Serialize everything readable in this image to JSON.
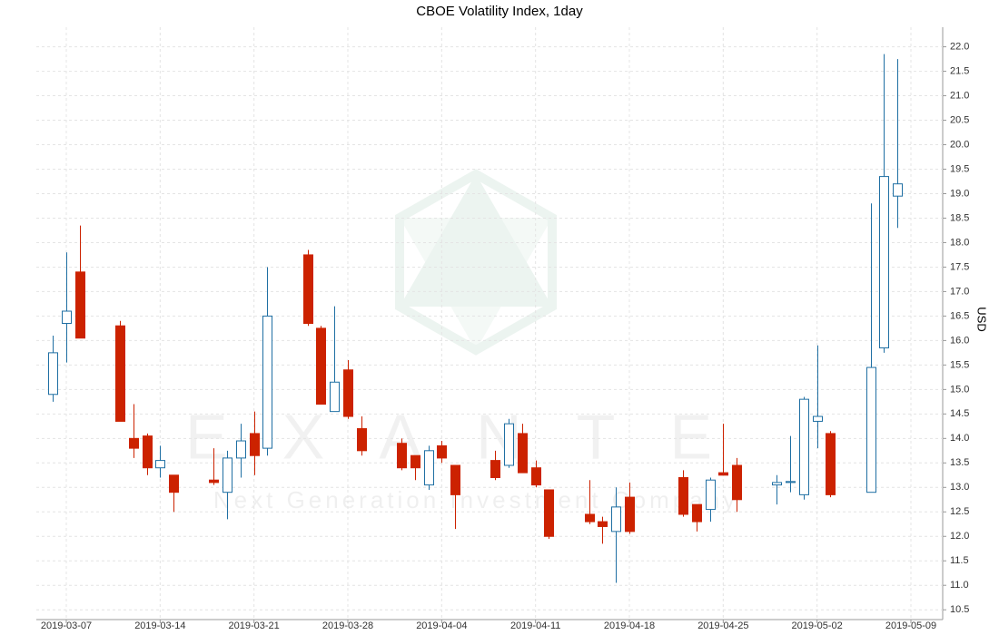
{
  "chart_data": {
    "type": "candlestick",
    "title": "CBOE Volatility Index, 1day",
    "y_label": "USD",
    "watermark": "EXANTE",
    "watermark_subtitle": "Next Generation Investment Company",
    "up_color": "#1f6fa3",
    "down_color": "#cc2200",
    "grid": true,
    "ylim": [
      10.3,
      22.4
    ],
    "yticks": [
      10.5,
      {
        "value": 11,
        "label": "11.0"
      },
      11.5,
      {
        "value": 12,
        "label": "12.0"
      },
      12.5,
      {
        "value": 13,
        "label": "13.0"
      },
      13.5,
      {
        "value": 14,
        "label": "14.0"
      },
      14.5,
      {
        "value": 15,
        "label": "15.0"
      },
      15.5,
      {
        "value": 16,
        "label": "16.0"
      },
      16.5,
      {
        "value": 17,
        "label": "17.0"
      },
      17.5,
      {
        "value": 18,
        "label": "18.0"
      },
      18.5,
      {
        "value": 19,
        "label": "19.0"
      },
      19.5,
      {
        "value": 20,
        "label": "20.0"
      },
      20.5,
      {
        "value": 21,
        "label": "21.0"
      },
      21.5,
      {
        "value": 22,
        "label": "22.0"
      }
    ],
    "xticks": [
      "2019-03-07",
      "2019-03-14",
      "2019-03-21",
      "2019-03-28",
      "2019-04-04",
      "2019-04-11",
      "2019-04-18",
      "2019-04-25",
      "2019-05-02",
      "2019-05-09"
    ],
    "x": [
      "2019-03-06",
      "2019-03-07",
      "2019-03-08",
      "2019-03-11",
      "2019-03-12",
      "2019-03-13",
      "2019-03-14",
      "2019-03-15",
      "2019-03-18",
      "2019-03-19",
      "2019-03-20",
      "2019-03-21",
      "2019-03-22",
      "2019-03-25",
      "2019-03-26",
      "2019-03-27",
      "2019-03-28",
      "2019-03-29",
      "2019-04-01",
      "2019-04-02",
      "2019-04-03",
      "2019-04-04",
      "2019-04-05",
      "2019-04-08",
      "2019-04-09",
      "2019-04-10",
      "2019-04-11",
      "2019-04-12",
      "2019-04-15",
      "2019-04-16",
      "2019-04-17",
      "2019-04-18",
      "2019-04-22",
      "2019-04-23",
      "2019-04-24",
      "2019-04-25",
      "2019-04-26",
      "2019-04-29",
      "2019-04-30",
      "2019-05-01",
      "2019-05-02",
      "2019-05-03",
      "2019-05-06",
      "2019-05-07",
      "2019-05-08"
    ],
    "open": [
      14.9,
      16.35,
      17.4,
      16.3,
      14.0,
      14.05,
      13.4,
      13.25,
      13.15,
      12.9,
      13.6,
      14.1,
      13.8,
      17.75,
      16.25,
      14.55,
      15.4,
      14.2,
      13.9,
      13.65,
      13.05,
      13.85,
      13.45,
      13.55,
      13.45,
      14.1,
      13.4,
      12.95,
      12.45,
      12.3,
      12.1,
      12.8,
      13.2,
      12.65,
      12.55,
      13.3,
      13.45,
      13.05,
      13.1,
      12.85,
      14.35,
      14.1,
      12.9,
      15.85,
      18.95
    ],
    "high": [
      16.1,
      17.8,
      18.35,
      16.4,
      14.7,
      14.1,
      13.85,
      13.25,
      13.8,
      13.75,
      14.3,
      14.55,
      17.5,
      17.85,
      16.3,
      16.7,
      15.6,
      14.45,
      14.0,
      13.65,
      13.85,
      13.95,
      13.45,
      13.75,
      14.4,
      14.3,
      13.55,
      12.95,
      13.15,
      12.4,
      13.0,
      13.1,
      13.35,
      12.65,
      13.2,
      14.3,
      13.6,
      13.25,
      14.05,
      14.85,
      15.9,
      14.15,
      18.8,
      21.85,
      21.75
    ],
    "low": [
      14.75,
      15.55,
      16.05,
      14.35,
      13.6,
      13.25,
      13.2,
      12.5,
      13.05,
      12.35,
      13.2,
      13.25,
      13.65,
      16.3,
      14.7,
      14.55,
      14.4,
      13.65,
      13.35,
      13.15,
      12.95,
      13.5,
      12.15,
      13.15,
      13.4,
      13.3,
      13.0,
      11.95,
      12.25,
      11.85,
      11.05,
      12.05,
      12.4,
      12.1,
      12.3,
      13.25,
      12.5,
      12.65,
      12.9,
      12.75,
      13.8,
      12.8,
      12.9,
      15.75,
      18.3
    ],
    "close": [
      15.75,
      16.6,
      16.05,
      14.35,
      13.8,
      13.4,
      13.55,
      12.9,
      13.1,
      13.6,
      13.95,
      13.65,
      16.5,
      16.35,
      14.7,
      15.15,
      14.45,
      13.75,
      13.4,
      13.4,
      13.75,
      13.6,
      12.85,
      13.2,
      14.3,
      13.3,
      13.05,
      12.0,
      12.3,
      12.2,
      12.6,
      12.1,
      12.45,
      12.3,
      13.15,
      13.25,
      12.75,
      13.1,
      13.12,
      14.8,
      14.45,
      12.85,
      15.45,
      19.35,
      19.2
    ]
  }
}
